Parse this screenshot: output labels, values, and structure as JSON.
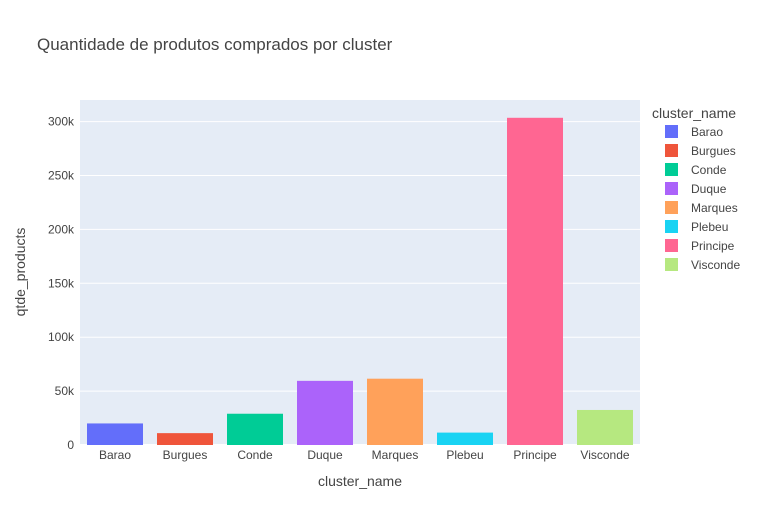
{
  "chart_data": {
    "type": "bar",
    "title": "Quantidade de produtos comprados por cluster",
    "xlabel": "cluster_name",
    "ylabel": "qtde_products",
    "categories": [
      "Barao",
      "Burgues",
      "Conde",
      "Duque",
      "Marques",
      "Plebeu",
      "Principe",
      "Visconde"
    ],
    "values": [
      20000,
      11000,
      29000,
      59500,
      61500,
      11500,
      303500,
      32500
    ],
    "colors": [
      "#636efa",
      "#EF553B",
      "#00cc96",
      "#ab63fa",
      "#FFA15A",
      "#19d3f3",
      "#FF6692",
      "#B6E880"
    ],
    "ylim": [
      0,
      320000
    ],
    "yticks": [
      0,
      50000,
      100000,
      150000,
      200000,
      250000,
      300000
    ],
    "ytick_labels": [
      "0",
      "50k",
      "100k",
      "150k",
      "200k",
      "250k",
      "300k"
    ],
    "grid": true,
    "legend": {
      "title": "cluster_name",
      "placement": "right",
      "entries": [
        "Barao",
        "Burgues",
        "Conde",
        "Duque",
        "Marques",
        "Plebeu",
        "Principe",
        "Visconde"
      ]
    }
  }
}
